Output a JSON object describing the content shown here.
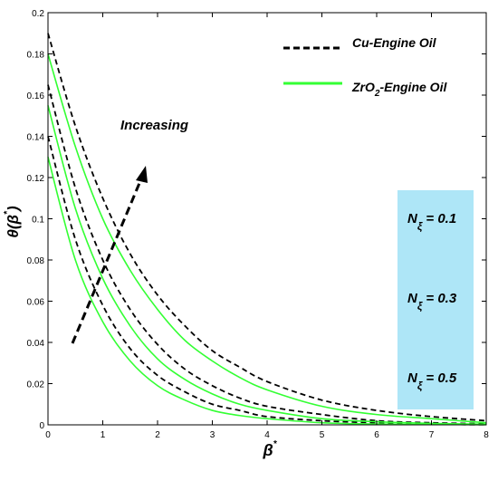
{
  "chart_data": {
    "type": "line",
    "xlim": [
      0,
      8
    ],
    "ylim": [
      0,
      0.2
    ],
    "x_ticks": [
      "0",
      "1",
      "2",
      "3",
      "4",
      "5",
      "6",
      "7",
      "8"
    ],
    "y_ticks": [
      "0",
      "0.02",
      "0.04",
      "0.06",
      "0.08",
      "0.1",
      "0.12",
      "0.14",
      "0.16",
      "0.18",
      "0.2"
    ],
    "xlabel": {
      "base": "β",
      "sup": "*"
    },
    "ylabel": {
      "base": "θ(β",
      "sup": "*",
      "close": ")"
    },
    "legend": {
      "placement": "top-right",
      "entries": [
        {
          "label": "Cu-Engine Oil",
          "style": "dashed",
          "color": "#000000"
        },
        {
          "label_pre": "ZrO",
          "label_sub": "2",
          "label_post": "-Engine Oil",
          "style": "solid",
          "color": "#33ff33"
        }
      ]
    },
    "annotation": {
      "text": "Increasing"
    },
    "param_box": {
      "color": "#aee6f7",
      "labels": [
        {
          "base": "N",
          "sub": "ξ",
          "value": " = 0.1"
        },
        {
          "base": "N",
          "sub": "ξ",
          "value": " = 0.3"
        },
        {
          "base": "N",
          "sub": "ξ",
          "value": " = 0.5"
        }
      ]
    },
    "series": [
      {
        "group": "Cu-Engine Oil",
        "style": "dashed",
        "color": "#000000",
        "x": [
          0,
          0.5,
          1,
          1.5,
          2,
          2.5,
          3,
          3.5,
          4,
          5,
          6,
          7,
          8
        ],
        "y": [
          0.19,
          0.145,
          0.11,
          0.083,
          0.063,
          0.048,
          0.036,
          0.028,
          0.021,
          0.012,
          0.007,
          0.004,
          0.002
        ]
      },
      {
        "group": "Cu-Engine Oil",
        "style": "dashed",
        "color": "#000000",
        "x": [
          0,
          0.5,
          1,
          1.5,
          2,
          2.5,
          3,
          3.5,
          4,
          5,
          6,
          7,
          8
        ],
        "y": [
          0.165,
          0.115,
          0.08,
          0.056,
          0.039,
          0.027,
          0.019,
          0.013,
          0.009,
          0.005,
          0.002,
          0.001,
          0.0005
        ]
      },
      {
        "group": "Cu-Engine Oil",
        "style": "dashed",
        "color": "#000000",
        "x": [
          0,
          0.5,
          1,
          1.5,
          2,
          2.5,
          3,
          3.5,
          4,
          5,
          6,
          7,
          8
        ],
        "y": [
          0.14,
          0.09,
          0.058,
          0.037,
          0.024,
          0.016,
          0.01,
          0.007,
          0.004,
          0.002,
          0.001,
          0.0003,
          0.0001
        ]
      },
      {
        "group": "ZrO2-Engine Oil",
        "style": "solid",
        "color": "#33ff33",
        "x": [
          0,
          0.5,
          1,
          1.5,
          2,
          2.5,
          3,
          3.5,
          4,
          5,
          6,
          7,
          8
        ],
        "y": [
          0.18,
          0.135,
          0.1,
          0.075,
          0.056,
          0.041,
          0.031,
          0.023,
          0.017,
          0.009,
          0.005,
          0.003,
          0.001
        ]
      },
      {
        "group": "ZrO2-Engine Oil",
        "style": "solid",
        "color": "#33ff33",
        "x": [
          0,
          0.5,
          1,
          1.5,
          2,
          2.5,
          3,
          3.5,
          4,
          5,
          6,
          7,
          8
        ],
        "y": [
          0.155,
          0.105,
          0.071,
          0.048,
          0.032,
          0.022,
          0.015,
          0.01,
          0.007,
          0.003,
          0.0015,
          0.0007,
          0.0003
        ]
      },
      {
        "group": "ZrO2-Engine Oil",
        "style": "solid",
        "color": "#33ff33",
        "x": [
          0,
          0.5,
          1,
          1.5,
          2,
          2.5,
          3,
          3.5,
          4,
          5,
          6,
          7,
          8
        ],
        "y": [
          0.13,
          0.08,
          0.05,
          0.031,
          0.019,
          0.012,
          0.007,
          0.0045,
          0.003,
          0.001,
          0.0004,
          0.0002,
          0.0001
        ]
      }
    ]
  }
}
